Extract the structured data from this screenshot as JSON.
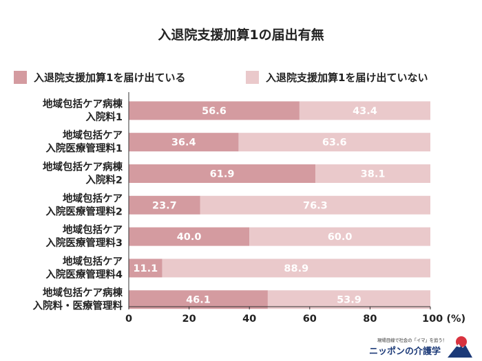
{
  "colors": {
    "submitted": "#d49ba0",
    "not_submitted": "#eac9cb",
    "axis": "#333333",
    "logo_navy": "#1c3a78",
    "logo_red": "#d9333f"
  },
  "chart_data": {
    "type": "bar",
    "orientation": "horizontal",
    "stacked": true,
    "title": "入退院支援加算1の届出有無",
    "categories": [
      [
        "地域包括ケア病棟",
        "入院料1"
      ],
      [
        "地域包括ケア",
        "入院医療管理料1"
      ],
      [
        "地域包括ケア病棟",
        "入院料2"
      ],
      [
        "地域包括ケア",
        "入院医療管理料2"
      ],
      [
        "地域包括ケア",
        "入院医療管理料3"
      ],
      [
        "地域包括ケア",
        "入院医療管理料4"
      ],
      [
        "地域包括ケア病棟",
        "入院料・医療管理料"
      ]
    ],
    "series": [
      {
        "name": "入退院支援加算1を届け出ている",
        "values": [
          56.6,
          36.4,
          61.9,
          23.7,
          40.0,
          11.1,
          46.1
        ],
        "labels": [
          "56.6",
          "36.4",
          "61.9",
          "23.7",
          "40.0",
          "11.1",
          "46.1"
        ]
      },
      {
        "name": "入退院支援加算1を届け出ていない",
        "values": [
          43.4,
          63.6,
          38.1,
          76.3,
          60.0,
          88.9,
          53.9
        ],
        "labels": [
          "43.4",
          "63.6",
          "38.1",
          "76.3",
          "60.0",
          "88.9",
          "53.9"
        ]
      }
    ],
    "xlim": [
      0,
      100
    ],
    "xticks": [
      "0",
      "20",
      "40",
      "60",
      "80",
      "100 (%)"
    ],
    "grid": false,
    "legend_position": "top"
  },
  "logo": {
    "tagline": "現場目線で社会の「イマ」を追う！",
    "name": "ニッポンの介護学"
  }
}
